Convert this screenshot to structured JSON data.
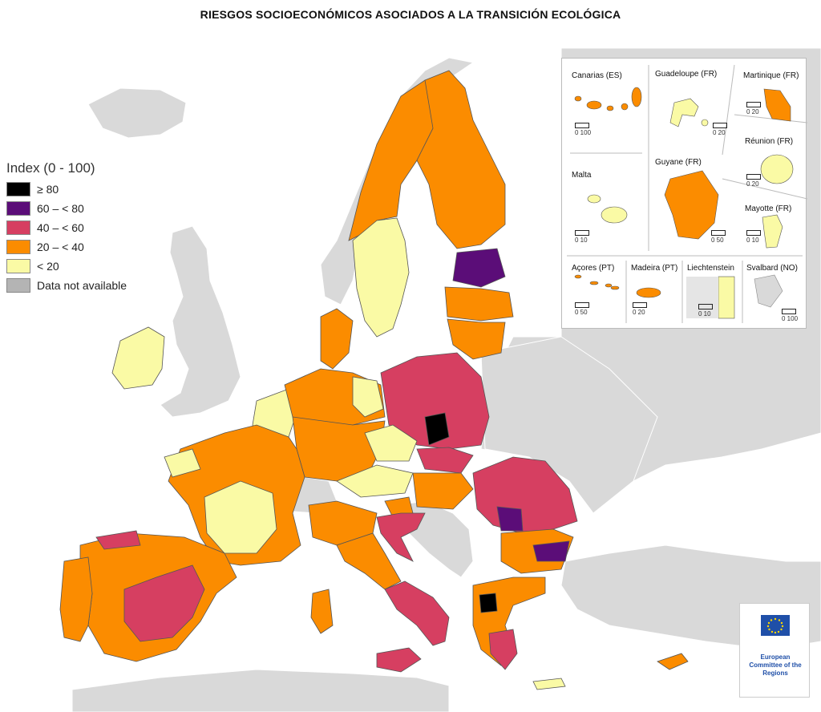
{
  "title": "RIESGOS SOCIOECONÓMICOS ASOCIADOS A LA TRANSICIÓN ECOLÓGICA",
  "colors": {
    "sea": "#ffffff",
    "non_eu": "#d9d9d9",
    "c80": "#000000",
    "c60": "#5b0d78",
    "c40": "#d63f61",
    "c20": "#fb8c00",
    "c0": "#fafaa5",
    "na": "#b4b4b4",
    "border": "#555555"
  },
  "legend": {
    "title": "Index (0 - 100)",
    "items": [
      {
        "label": "≥ 80",
        "color": "#000000"
      },
      {
        "label": "60 – < 80",
        "color": "#5b0d78"
      },
      {
        "label": "40 – < 60",
        "color": "#d63f61"
      },
      {
        "label": "20 – < 40",
        "color": "#fb8c00"
      },
      {
        "label": "< 20",
        "color": "#fafaa5"
      },
      {
        "label": "Data not available",
        "color": "#b4b4b4"
      }
    ]
  },
  "insets": {
    "canarias": {
      "label": "Canarias (ES)",
      "scale": "0   100"
    },
    "guadeloupe": {
      "label": "Guadeloupe (FR)",
      "scale": "0   20"
    },
    "martinique": {
      "label": "Martinique (FR)",
      "scale": "0   20"
    },
    "reunion": {
      "label": "Réunion (FR)",
      "scale": "0   20"
    },
    "malta": {
      "label": "Malta",
      "scale": "0   10"
    },
    "guyane": {
      "label": "Guyane (FR)",
      "scale": "0  50"
    },
    "mayotte": {
      "label": "Mayotte (FR)",
      "scale": "0   10"
    },
    "acores": {
      "label": "Açores (PT)",
      "scale": "0   50"
    },
    "madeira": {
      "label": "Madeira (PT)",
      "scale": "0   20"
    },
    "liechtenstein": {
      "label": "Liechtenstein",
      "scale": "0   10"
    },
    "svalbard": {
      "label": "Svalbard (NO)",
      "scale": "0 100"
    }
  },
  "logo": {
    "name": "European Committee of the Regions",
    "icon": "eu-flag-icon"
  }
}
